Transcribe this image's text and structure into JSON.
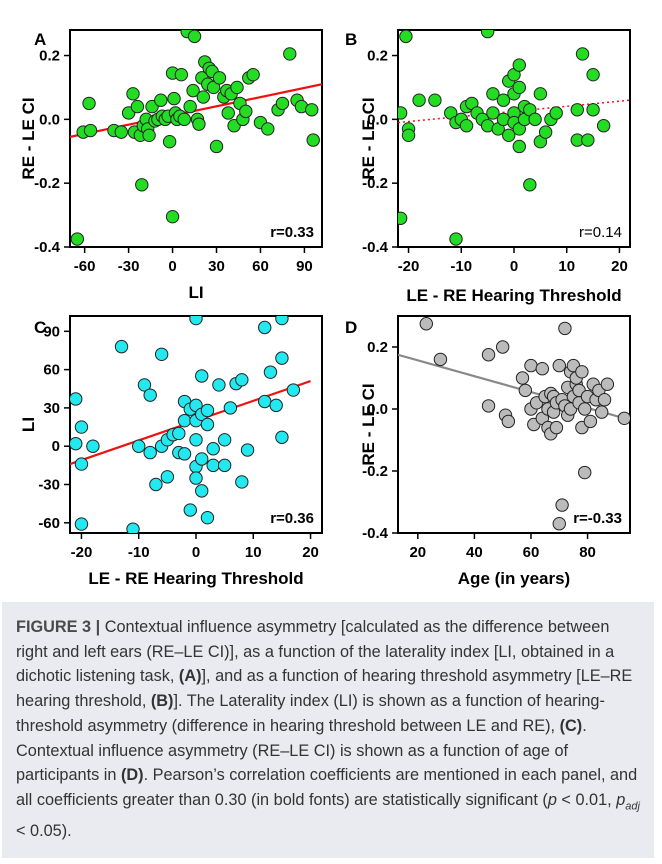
{
  "chart_data": [
    {
      "panel": "A",
      "type": "scatter",
      "xlabel": "LI",
      "ylabel": "RE - LE CI",
      "xlim": [
        -70,
        102
      ],
      "ylim": [
        -0.4,
        0.28
      ],
      "xticks": [
        -60,
        -30,
        0,
        30,
        60,
        90
      ],
      "yticks": [
        -0.4,
        -0.2,
        0.0,
        0.2
      ],
      "ytick_labels": [
        "-0.4",
        "-0.2",
        "0.0",
        "0.2"
      ],
      "annotation": "r=0.33",
      "annotation_bold": true,
      "point_color": "#22dd22",
      "fit_line": {
        "x": [
          -70,
          102
        ],
        "y": [
          -0.055,
          0.11
        ],
        "color": "#ee1111",
        "style": "solid"
      },
      "points": [
        [
          -65,
          -0.375
        ],
        [
          -61,
          -0.04
        ],
        [
          -57,
          0.05
        ],
        [
          -56,
          -0.035
        ],
        [
          -40,
          -0.035
        ],
        [
          -35,
          -0.04
        ],
        [
          -30,
          0.02
        ],
        [
          -27,
          0.08
        ],
        [
          -26,
          -0.04
        ],
        [
          -24,
          0.04
        ],
        [
          -22,
          -0.05
        ],
        [
          -21,
          -0.205
        ],
        [
          -20,
          -0.02
        ],
        [
          -18,
          0.0
        ],
        [
          -17,
          -0.03
        ],
        [
          -16,
          -0.05
        ],
        [
          -14,
          0.04
        ],
        [
          -12,
          -0.005
        ],
        [
          -10,
          0.0
        ],
        [
          -8,
          0.06
        ],
        [
          -7,
          0.01
        ],
        [
          -5,
          0.0
        ],
        [
          -3,
          0.01
        ],
        [
          -2,
          -0.07
        ],
        [
          0,
          0.145
        ],
        [
          0,
          -0.305
        ],
        [
          1,
          0.065
        ],
        [
          2,
          0.02
        ],
        [
          3,
          0.0
        ],
        [
          5,
          0.01
        ],
        [
          6,
          0.14
        ],
        [
          8,
          0.0
        ],
        [
          10,
          0.275
        ],
        [
          12,
          0.04
        ],
        [
          14,
          0.09
        ],
        [
          15,
          0.26
        ],
        [
          17,
          0.0
        ],
        [
          18,
          -0.015
        ],
        [
          20,
          0.13
        ],
        [
          21,
          0.07
        ],
        [
          22,
          0.18
        ],
        [
          24,
          0.11
        ],
        [
          25,
          0.16
        ],
        [
          27,
          0.15
        ],
        [
          28,
          0.1
        ],
        [
          30,
          -0.085
        ],
        [
          32,
          0.13
        ],
        [
          35,
          0.07
        ],
        [
          37,
          0.09
        ],
        [
          38,
          0.02
        ],
        [
          40,
          0.08
        ],
        [
          42,
          -0.02
        ],
        [
          44,
          0.1
        ],
        [
          46,
          0.05
        ],
        [
          48,
          0.0
        ],
        [
          50,
          0.025
        ],
        [
          52,
          0.13
        ],
        [
          55,
          0.14
        ],
        [
          60,
          -0.01
        ],
        [
          65,
          -0.03
        ],
        [
          72,
          0.03
        ],
        [
          75,
          0.05
        ],
        [
          80,
          0.205
        ],
        [
          85,
          0.06
        ],
        [
          88,
          0.04
        ],
        [
          95,
          0.03
        ],
        [
          96,
          -0.065
        ]
      ]
    },
    {
      "panel": "B",
      "type": "scatter",
      "xlabel": "LE - RE Hearing Threshold",
      "ylabel": "RE - LE CI",
      "xlim": [
        -22,
        22
      ],
      "ylim": [
        -0.4,
        0.28
      ],
      "xticks": [
        -20,
        -10,
        0,
        10,
        20
      ],
      "yticks": [
        -0.4,
        -0.2,
        0.0,
        0.2
      ],
      "ytick_labels": [
        "-0.4",
        "-0.2",
        "0.0",
        "0.2"
      ],
      "annotation": "r=0.14",
      "annotation_bold": false,
      "point_color": "#22dd22",
      "fit_line": {
        "x": [
          -22,
          22
        ],
        "y": [
          -0.01,
          0.06
        ],
        "color": "#ee1111",
        "style": "dotted"
      },
      "points": [
        [
          -21.5,
          -0.31
        ],
        [
          -21.5,
          0.02
        ],
        [
          -20.5,
          0.26
        ],
        [
          -20,
          -0.03
        ],
        [
          -20,
          -0.05
        ],
        [
          -18,
          0.06
        ],
        [
          -15,
          0.06
        ],
        [
          -12,
          0.02
        ],
        [
          -11,
          -0.375
        ],
        [
          -11,
          -0.01
        ],
        [
          -10,
          0.0
        ],
        [
          -9,
          0.04
        ],
        [
          -9,
          -0.02
        ],
        [
          -8,
          0.05
        ],
        [
          -7,
          0.02
        ],
        [
          -6,
          0.0
        ],
        [
          -5,
          -0.02
        ],
        [
          -5,
          0.275
        ],
        [
          -4,
          0.02
        ],
        [
          -4,
          0.08
        ],
        [
          -3,
          -0.03
        ],
        [
          -2,
          0.06
        ],
        [
          -2,
          0.0
        ],
        [
          -1,
          0.12
        ],
        [
          -1,
          -0.05
        ],
        [
          0,
          0.14
        ],
        [
          0,
          0.02
        ],
        [
          0,
          -0.01
        ],
        [
          0,
          0.08
        ],
        [
          1,
          0.17
        ],
        [
          1,
          0.1
        ],
        [
          1,
          -0.03
        ],
        [
          1,
          -0.085
        ],
        [
          2,
          0.04
        ],
        [
          2,
          0.0
        ],
        [
          3,
          -0.205
        ],
        [
          3,
          0.03
        ],
        [
          4,
          0.0
        ],
        [
          5,
          0.08
        ],
        [
          5,
          -0.07
        ],
        [
          6,
          -0.04
        ],
        [
          7,
          0.0
        ],
        [
          8,
          0.02
        ],
        [
          12,
          0.03
        ],
        [
          12,
          -0.065
        ],
        [
          13,
          0.205
        ],
        [
          14,
          -0.065
        ],
        [
          15,
          0.14
        ],
        [
          15,
          0.03
        ],
        [
          17,
          -0.02
        ]
      ]
    },
    {
      "panel": "C",
      "type": "scatter",
      "xlabel": "LE - RE Hearing Threshold",
      "ylabel": "LI",
      "xlim": [
        -22,
        22
      ],
      "ylim": [
        -68,
        102
      ],
      "xticks": [
        -20,
        -10,
        0,
        10,
        20
      ],
      "yticks": [
        -60,
        -30,
        0,
        30,
        60,
        90
      ],
      "annotation": "r=0.36",
      "annotation_bold": true,
      "point_color": "#22e8f0",
      "fit_line": {
        "x": [
          -22,
          20
        ],
        "y": [
          -14,
          51
        ],
        "color": "#ee1111",
        "style": "solid"
      },
      "points": [
        [
          -21,
          37
        ],
        [
          -21,
          2
        ],
        [
          -20,
          15
        ],
        [
          -20,
          -14
        ],
        [
          -20,
          -61
        ],
        [
          -18,
          0
        ],
        [
          -13,
          78
        ],
        [
          -11,
          -65
        ],
        [
          -10,
          0
        ],
        [
          -9,
          48
        ],
        [
          -8,
          40
        ],
        [
          -8,
          -5
        ],
        [
          -7,
          -30
        ],
        [
          -6,
          0
        ],
        [
          -6,
          72
        ],
        [
          -5,
          5
        ],
        [
          -5,
          -24
        ],
        [
          -4,
          9
        ],
        [
          -3,
          10
        ],
        [
          -3,
          -5
        ],
        [
          -2,
          35
        ],
        [
          -2,
          20
        ],
        [
          -2,
          -6
        ],
        [
          -1,
          29
        ],
        [
          -1,
          -50
        ],
        [
          0,
          100
        ],
        [
          0,
          32
        ],
        [
          0,
          20
        ],
        [
          0,
          5
        ],
        [
          0,
          -16
        ],
        [
          0,
          -25
        ],
        [
          1,
          -10
        ],
        [
          1,
          -35
        ],
        [
          1,
          55
        ],
        [
          1,
          25
        ],
        [
          2,
          17
        ],
        [
          2,
          28
        ],
        [
          2,
          -56
        ],
        [
          3,
          -2
        ],
        [
          3,
          -15
        ],
        [
          4,
          48
        ],
        [
          5,
          5
        ],
        [
          5,
          -15
        ],
        [
          6,
          30
        ],
        [
          7,
          49
        ],
        [
          8,
          -28
        ],
        [
          8,
          52
        ],
        [
          9,
          -3
        ],
        [
          12,
          93
        ],
        [
          12,
          35
        ],
        [
          13,
          58
        ],
        [
          14,
          32
        ],
        [
          15,
          100
        ],
        [
          15,
          69
        ],
        [
          15,
          7
        ],
        [
          17,
          44
        ]
      ]
    },
    {
      "panel": "D",
      "type": "scatter",
      "xlabel": "Age (in years)",
      "ylabel": "RE - LE CI",
      "xlim": [
        13,
        95
      ],
      "ylim": [
        -0.4,
        0.3
      ],
      "xticks": [
        20,
        40,
        60,
        80
      ],
      "yticks": [
        -0.4,
        -0.2,
        0.0,
        0.2
      ],
      "ytick_labels": [
        "-0.4",
        "-0.2",
        "0.0",
        "0.2"
      ],
      "annotation": "r=-0.33",
      "annotation_bold": true,
      "point_color": "#bbbbbb",
      "fit_line": {
        "x": [
          13,
          95
        ],
        "y": [
          0.175,
          -0.035
        ],
        "color": "#888888",
        "style": "solid"
      },
      "points": [
        [
          23,
          0.275
        ],
        [
          28,
          0.16
        ],
        [
          45,
          0.175
        ],
        [
          45,
          0.01
        ],
        [
          50,
          0.2
        ],
        [
          51,
          -0.02
        ],
        [
          52,
          -0.04
        ],
        [
          57,
          0.1
        ],
        [
          58,
          0.06
        ],
        [
          60,
          0.0
        ],
        [
          60,
          0.14
        ],
        [
          61,
          -0.05
        ],
        [
          62,
          0.02
        ],
        [
          64,
          0.13
        ],
        [
          64,
          -0.03
        ],
        [
          65,
          0.04
        ],
        [
          66,
          -0.06
        ],
        [
          66,
          0.0
        ],
        [
          67,
          -0.08
        ],
        [
          67,
          0.05
        ],
        [
          68,
          0.04
        ],
        [
          68,
          -0.01
        ],
        [
          69,
          -0.06
        ],
        [
          69,
          0.02
        ],
        [
          70,
          -0.37
        ],
        [
          70,
          0.14
        ],
        [
          71,
          -0.31
        ],
        [
          71,
          0.03
        ],
        [
          72,
          0.26
        ],
        [
          72,
          0.01
        ],
        [
          73,
          -0.02
        ],
        [
          73,
          0.07
        ],
        [
          74,
          0.12
        ],
        [
          74,
          0.0
        ],
        [
          75,
          0.14
        ],
        [
          75,
          0.04
        ],
        [
          76,
          0.08
        ],
        [
          76,
          0.1
        ],
        [
          77,
          0.02
        ],
        [
          77,
          0.06
        ],
        [
          78,
          -0.06
        ],
        [
          78,
          0.12
        ],
        [
          79,
          -0.205
        ],
        [
          79,
          0.0
        ],
        [
          80,
          0.04
        ],
        [
          81,
          -0.04
        ],
        [
          82,
          0.08
        ],
        [
          83,
          0.03
        ],
        [
          84,
          0.06
        ],
        [
          85,
          -0.01
        ],
        [
          86,
          0.03
        ],
        [
          87,
          0.08
        ],
        [
          93,
          -0.03
        ]
      ]
    }
  ],
  "caption": {
    "label": "FIGURE 3 |",
    "text_1": " Contextual influence asymmetry [calculated as the difference between right and left ears (RE–LE CI)], as a function of the laterality index [LI, obtained in a dichotic listening task, ",
    "ref_A": "(A)",
    "text_2": "], and as a function of hearing threshold asymmetry [LE–RE hearing threshold, ",
    "ref_B": "(B)",
    "text_3": "]. The Laterality index (LI) is shown as a function of hearing-threshold asymmetry (difference in hearing threshold between LE and RE), ",
    "ref_C": "(C)",
    "text_4": ". Contextual influence asymmetry (RE–LE CI) is shown as a function of age of participants in ",
    "ref_D": "(D)",
    "text_5": ". Pearson’s correlation coefficients are mentioned in each panel, and all coefficients greater than 0.30 (in bold fonts) are statistically significant (",
    "p_symbol": "p",
    "p_mid": " < 0.01, ",
    "p_adj": "p",
    "p_adj_sub": "adj",
    "text_6": " < 0.05)."
  }
}
